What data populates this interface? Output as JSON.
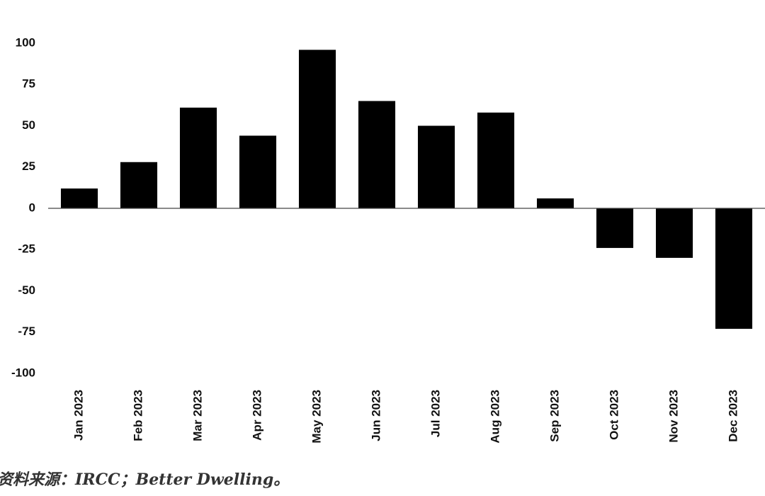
{
  "chart_data": {
    "type": "bar",
    "categories": [
      "Jan 2023",
      "Feb 2023",
      "Mar 2023",
      "Apr 2023",
      "May 2023",
      "Jun 2023",
      "Jul 2023",
      "Aug 2023",
      "Sep 2023",
      "Oct 2023",
      "Nov 2023",
      "Dec 2023"
    ],
    "values": [
      12,
      28,
      61,
      44,
      96,
      65,
      50,
      58,
      6,
      -24,
      -30,
      -73
    ],
    "color": "#000000",
    "ylim": [
      -100,
      100
    ],
    "yticks": [
      -100,
      -75,
      -50,
      -25,
      0,
      25,
      50,
      75,
      100
    ],
    "grid": false,
    "source": "资料来源：IRCC；Better Dwelling。"
  }
}
